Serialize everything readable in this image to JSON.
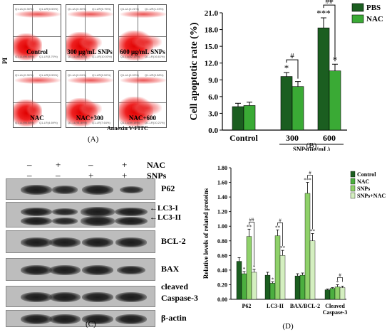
{
  "panel_a": {
    "label": "(A)",
    "y_axis_label": "PI",
    "x_axis_label": "Annexin V-FITC",
    "plots": [
      {
        "name": "Control",
        "q1": "Q1-UL(0.30%)",
        "q2": "Q1-UR(0.53%)",
        "q3": "Q1-LL(95.48%)",
        "q4": "Q1-LR(3.70%)"
      },
      {
        "name": "300 μg/mL SNPs",
        "q1": "Q1-UL(0.30%)",
        "q2": "Q1-UR(0.75%)",
        "q3": "Q1-LL(88.92%)",
        "q4": "Q1-LR(10.03%)"
      },
      {
        "name": "600 μg/mL SNPs",
        "q1": "Q1-UL(0.21%)",
        "q2": "Q1-UR(1.03%)",
        "q3": "Q1-LL(82.15%)",
        "q4": "Q1-LR(16.61%)"
      },
      {
        "name": "NAC",
        "q1": "Q1-UL(0.30%)",
        "q2": "Q1-UR(0.53%)",
        "q3": "Q1-LL(94.48%)",
        "q4": "Q1-LR(4.69%)"
      },
      {
        "name": "NAC+300",
        "q1": "Q1-UL(0.04%)",
        "q2": "Q1-UR(0.52%)",
        "q3": "Q1-LL(91.80%)",
        "q4": "Q1-LR(7.64%)"
      },
      {
        "name": "NAC+600",
        "q1": "Q1-UL(0.03%)",
        "q2": "Q1-UR(0.58%)",
        "q3": "Q1-LL(89.18%)",
        "q4": "Q1-LR(10.21%)"
      }
    ]
  },
  "panel_c": {
    "label": "(C)",
    "treatments": [
      {
        "name": "NAC",
        "signs": [
          "–",
          "+",
          "–",
          "+"
        ]
      },
      {
        "name": "SNPs",
        "signs": [
          "–",
          "–",
          "+",
          "+"
        ]
      }
    ],
    "rows": [
      {
        "label": "P62"
      },
      {
        "label": "LC3-I / LC3-II",
        "arrows": [
          "LC3-I",
          "LC3-II"
        ]
      },
      {
        "label": "BCL-2"
      },
      {
        "label": "BAX"
      },
      {
        "label": "cleaved Caspase-3",
        "line1": "cleaved",
        "line2": "Caspase-3"
      },
      {
        "label": "β-actin"
      }
    ]
  },
  "chart_data": [
    {
      "type": "bar",
      "panel": "(B)",
      "ylabel": "Cell apoptotic rate (%)",
      "xlabel": "SNPs(μg/mL)",
      "ylim": [
        0,
        21
      ],
      "yticks": [
        "0.0",
        "3.0",
        "6.0",
        "9.0",
        "12.0",
        "15.0",
        "18.0",
        "21.0"
      ],
      "categories": [
        "Control",
        "300",
        "600"
      ],
      "series": [
        {
          "name": "PBS",
          "color": "#1b5e20",
          "values": [
            4.2,
            9.6,
            18.3
          ],
          "errors": [
            0.6,
            0.7,
            1.8
          ],
          "stars": [
            "",
            "*",
            "***"
          ]
        },
        {
          "name": "NAC",
          "color": "#3aaa35",
          "values": [
            4.4,
            7.8,
            10.6
          ],
          "errors": [
            0.6,
            0.9,
            1.2
          ],
          "stars": [
            "",
            "",
            "*"
          ]
        }
      ],
      "brackets": [
        {
          "category": "300",
          "text": "#"
        },
        {
          "category": "600",
          "text": "##"
        }
      ],
      "legend": "top-right"
    },
    {
      "type": "bar",
      "panel": "(D)",
      "ylabel": "Relative levels of related proteins",
      "ylim": [
        0,
        1.8
      ],
      "yticks": [
        "0.00",
        "0.20",
        "0.40",
        "0.60",
        "0.80",
        "1.00",
        "1.20",
        "1.40",
        "1.60",
        "1.80"
      ],
      "categories": [
        "P62",
        "LC3-II",
        "BAX/BCL-2",
        "Cleaved Caspase-3"
      ],
      "series": [
        {
          "name": "Control",
          "color": "#1b5e20",
          "values": [
            0.52,
            0.33,
            0.32,
            0.13
          ],
          "errors": [
            0.05,
            0.04,
            0.03,
            0.01
          ],
          "stars": [
            "",
            "",
            "",
            ""
          ]
        },
        {
          "name": "NAC",
          "color": "#4caf3f",
          "values": [
            0.35,
            0.22,
            0.33,
            0.15
          ],
          "errors": [
            0.03,
            0.02,
            0.03,
            0.01
          ],
          "stars": [
            "*",
            "*",
            "",
            ""
          ]
        },
        {
          "name": "SNPs",
          "color": "#8fd16a",
          "values": [
            0.86,
            0.87,
            1.45,
            0.17
          ],
          "errors": [
            0.1,
            0.08,
            0.15,
            0.03
          ],
          "stars": [
            "**",
            "**",
            "***",
            "*"
          ]
        },
        {
          "name": "SNPs+NAC",
          "color": "#d4efc0",
          "values": [
            0.37,
            0.6,
            0.8,
            0.16
          ],
          "errors": [
            0.04,
            0.07,
            0.1,
            0.02
          ],
          "stars": [
            "*",
            "**",
            "**",
            ""
          ]
        }
      ],
      "brackets": [
        {
          "category": "P62",
          "text": "##"
        },
        {
          "category": "LC3-II",
          "text": "#"
        },
        {
          "category": "BAX/BCL-2",
          "text": "#"
        },
        {
          "category": "Cleaved Caspase-3",
          "text": "#"
        }
      ],
      "legend": "top-right"
    }
  ]
}
